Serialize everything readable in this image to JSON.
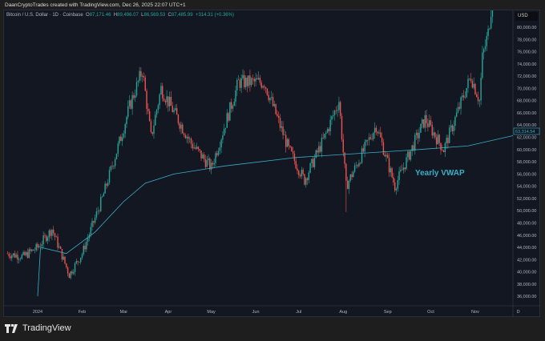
{
  "credit": "DaanCryptoTrades created with TradingView.com, Dec 26, 2025 22:07 UTC+1",
  "legend": {
    "symbol": "Bitcoin / U.S. Dollar · 1D · Coinbase",
    "o_label": "O",
    "o": "87,171.46",
    "h_label": "H",
    "h": "89,496.07",
    "l_label": "L",
    "l": "86,569.53",
    "c_label": "C",
    "c": "87,485.99",
    "change": "+314.31 (+0.36%)"
  },
  "currency": "USD",
  "brand": "TradingView",
  "chart_data": {
    "type": "candlestick",
    "title": "Bitcoin / U.S. Dollar · 1D · Coinbase",
    "ylim": [
      35000,
      81500
    ],
    "yticks": [
      80000,
      78000,
      76000,
      74000,
      72000,
      70000,
      68000,
      66000,
      64000,
      62000,
      60000,
      58000,
      56000,
      54000,
      52000,
      50000,
      48000,
      46000,
      44000,
      42000,
      40000,
      38000,
      36000
    ],
    "xticks": [
      {
        "label": "2024",
        "day": 0
      },
      {
        "label": "Feb",
        "day": 31
      },
      {
        "label": "Mar",
        "day": 60
      },
      {
        "label": "Apr",
        "day": 91
      },
      {
        "label": "May",
        "day": 121
      },
      {
        "label": "Jun",
        "day": 152
      },
      {
        "label": "Jul",
        "day": 182
      },
      {
        "label": "Aug",
        "day": 213
      },
      {
        "label": "Sep",
        "day": 244
      },
      {
        "label": "Oct",
        "day": 274
      },
      {
        "label": "Nov",
        "day": 305
      },
      {
        "label": "D",
        "day": 335
      }
    ],
    "price_path": [
      [
        -22,
        43000
      ],
      [
        -10,
        42500
      ],
      [
        0,
        44000
      ],
      [
        10,
        47000
      ],
      [
        22,
        39500
      ],
      [
        31,
        43000
      ],
      [
        45,
        52000
      ],
      [
        58,
        62000
      ],
      [
        64,
        67000
      ],
      [
        73,
        73000
      ],
      [
        79,
        62000
      ],
      [
        86,
        70000
      ],
      [
        100,
        64000
      ],
      [
        107,
        61000
      ],
      [
        121,
        57000
      ],
      [
        140,
        71000
      ],
      [
        158,
        71000
      ],
      [
        175,
        60000
      ],
      [
        186,
        55000
      ],
      [
        200,
        62000
      ],
      [
        210,
        68000
      ],
      [
        215,
        54000
      ],
      [
        236,
        64000
      ],
      [
        249,
        54000
      ],
      [
        270,
        65000
      ],
      [
        283,
        60000
      ],
      [
        302,
        72000
      ],
      [
        308,
        68000
      ],
      [
        310,
        75000
      ],
      [
        314,
        79000
      ],
      [
        317,
        85000
      ]
    ],
    "vwap_name": "Yearly VWAP",
    "vwap": [
      [
        0,
        36000
      ],
      [
        2,
        44000
      ],
      [
        20,
        43000
      ],
      [
        40,
        46500
      ],
      [
        60,
        51500
      ],
      [
        75,
        54500
      ],
      [
        95,
        56000
      ],
      [
        130,
        57300
      ],
      [
        180,
        58700
      ],
      [
        220,
        59300
      ],
      [
        260,
        59900
      ],
      [
        300,
        60600
      ],
      [
        330,
        62200
      ],
      [
        345,
        63314
      ]
    ],
    "vwap_last": "63,314.54",
    "colors": {
      "up": "#26a69a",
      "down": "#ef5350",
      "vwap": "#3ab0c8"
    }
  }
}
